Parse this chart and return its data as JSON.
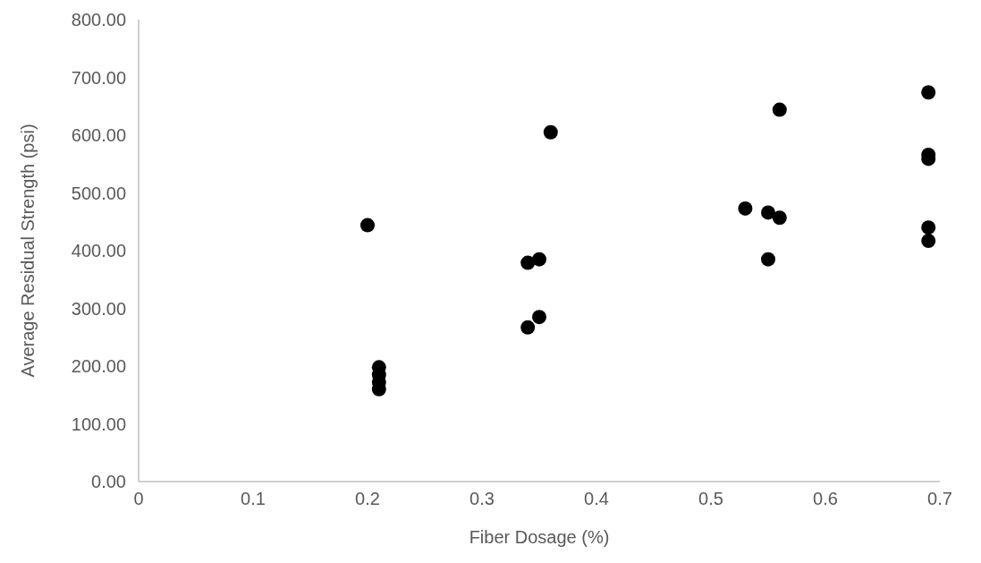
{
  "chart_data": {
    "type": "scatter",
    "xlabel": "Fiber Dosage (%)",
    "ylabel": "Average Residual Strength (psi)",
    "x": [
      0.2,
      0.21,
      0.21,
      0.21,
      0.21,
      0.34,
      0.34,
      0.35,
      0.35,
      0.36,
      0.53,
      0.55,
      0.55,
      0.56,
      0.56,
      0.69,
      0.69,
      0.69,
      0.69,
      0.69
    ],
    "values": [
      444,
      198,
      185,
      172,
      160,
      379,
      267,
      385,
      285,
      605,
      473,
      466,
      385,
      644,
      457,
      674,
      566,
      559,
      440,
      417
    ],
    "color": "#000000",
    "marker": "circle",
    "xlim": [
      0,
      0.7
    ],
    "xticks": [
      0,
      0.1,
      0.2,
      0.3,
      0.4,
      0.5,
      0.6,
      0.7
    ],
    "ylim": [
      0,
      800
    ],
    "yticks": [
      {
        "value": 0,
        "label": "0.00"
      },
      {
        "value": 100,
        "label": "100.00"
      },
      {
        "value": 200,
        "label": "200.00"
      },
      {
        "value": 300,
        "label": "300.00"
      },
      {
        "value": 400,
        "label": "400.00"
      },
      {
        "value": 500,
        "label": "500.00"
      },
      {
        "value": 600,
        "label": "600.00"
      },
      {
        "value": 700,
        "label": "700.00"
      },
      {
        "value": 800,
        "label": "800.00"
      }
    ],
    "grid": false
  }
}
